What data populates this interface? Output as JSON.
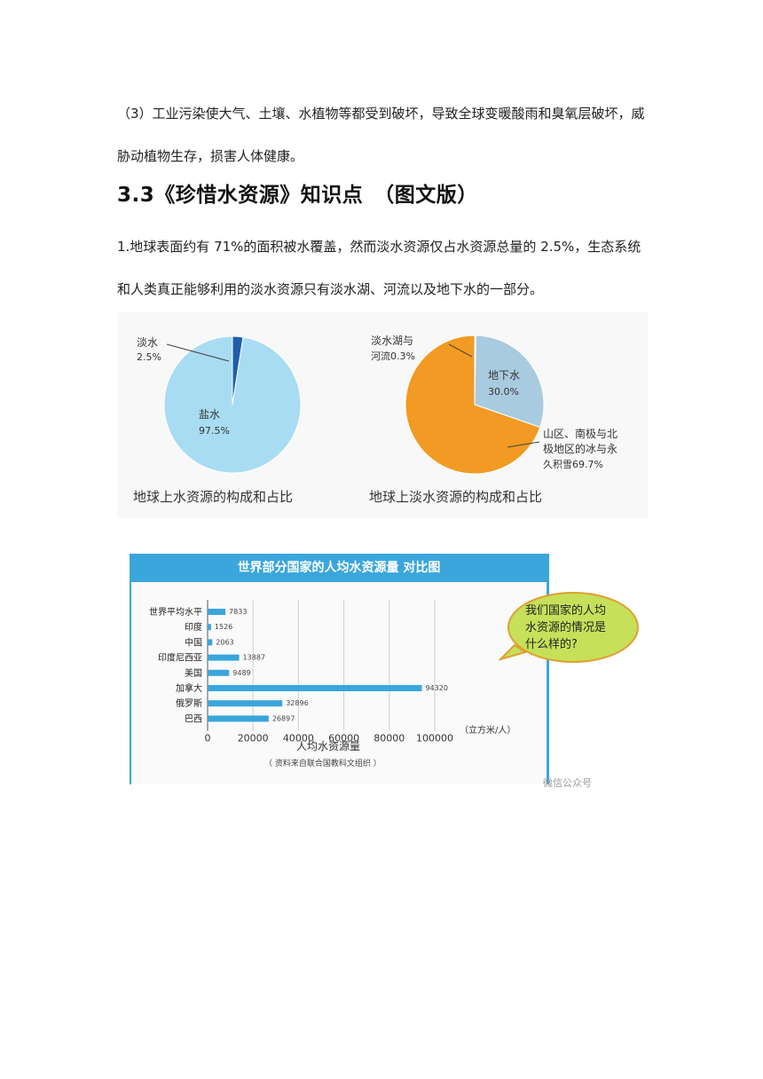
{
  "paragraph1": "（3）工业污染使大气、土壤、水植物等都受到破坏，导致全球变暖酸雨和臭氧层破坏，威胁动植物生存，损害人体健康。",
  "heading": "3.3《珍惜水资源》知识点　（图文版）",
  "paragraph2": "1.地球表面约有 71%的面积被水覆盖，然而淡水资源仅占水资源总量的 2.5%，生态系统和人类真正能够利用的淡水资源只有淡水湖、河流以及地下水的一部分。",
  "colors": {
    "salt": "#a8dcf2",
    "fresh": "#1f5fa8",
    "ice": "#f29a23",
    "ground": "#a8cbe0",
    "bar": "#3aa6dc"
  },
  "chart_data": [
    {
      "type": "pie",
      "title": "地球上水资源的构成和占比",
      "slices": [
        {
          "name": "淡水",
          "value_label": "2.5%",
          "value": 2.5
        },
        {
          "name": "盐水",
          "value_label": "97.5%",
          "value": 97.5
        }
      ]
    },
    {
      "type": "pie",
      "title": "地球上淡水资源的构成和占比",
      "slices": [
        {
          "name": "淡水湖与河流",
          "label_line1": "淡水湖与",
          "label_line2": "河流0.3%",
          "value": 0.3
        },
        {
          "name": "地下水",
          "label_line1": "地下水",
          "label_line2": "30.0%",
          "value": 30.0
        },
        {
          "name": "山区、南极与北极地区的冰与永久积雪",
          "label_line1": "山区、南极与北",
          "label_line2": "极地区的冰与永",
          "label_line3": "久积雪69.7%",
          "value": 69.7
        }
      ]
    },
    {
      "type": "bar",
      "title": "世界部分国家的人均水资源量 对比图",
      "categories": [
        "世界平均水平",
        "印度",
        "中国",
        "印度尼西亚",
        "美国",
        "加拿大",
        "俄罗斯",
        "巴西"
      ],
      "values": [
        7833,
        1526,
        2063,
        13887,
        9489,
        94320,
        32896,
        26897
      ],
      "xticks": [
        "0",
        "20000",
        "40000",
        "60000",
        "80000",
        "100000"
      ],
      "xlim": [
        0,
        100000
      ],
      "unit": "（立方米/人）",
      "xlabel": "人均水资源量",
      "source": "（ 资料来自联合国教科文组织 ）"
    }
  ],
  "bubble_text": [
    "我们国家的人均",
    "水资源的情况是",
    "什么样的?"
  ],
  "watermark": "微信公众号"
}
